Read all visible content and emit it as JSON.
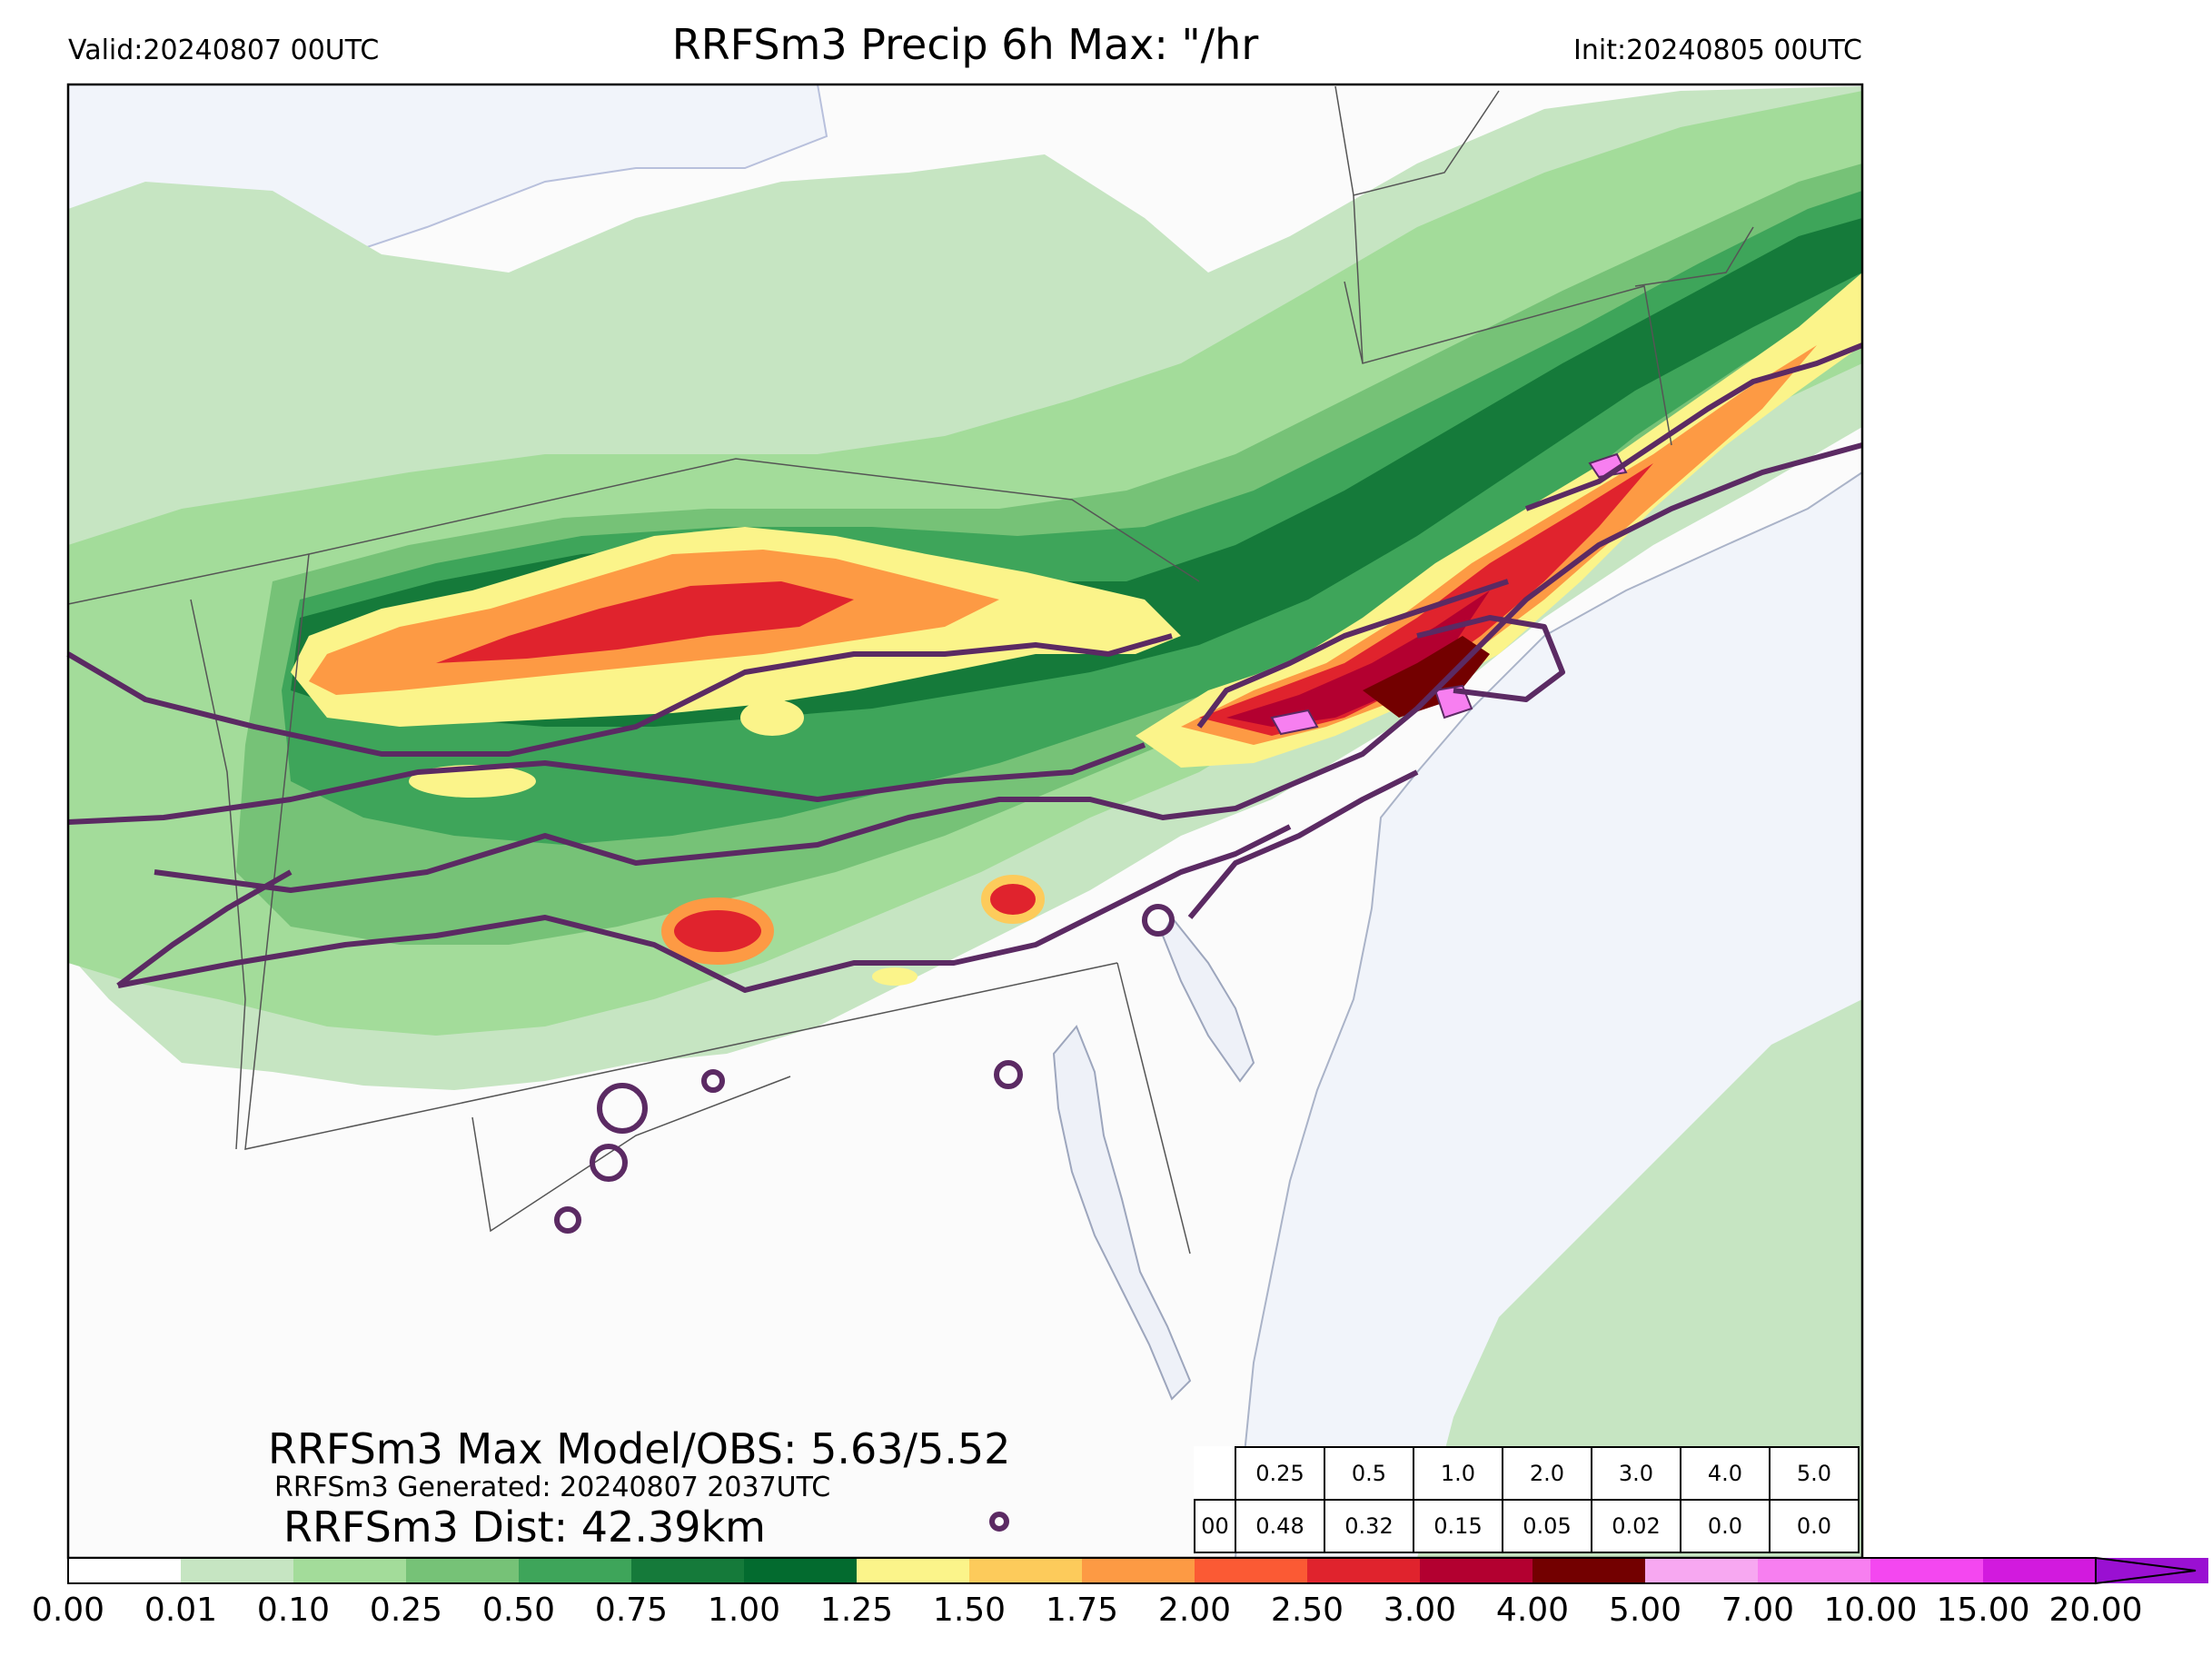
{
  "header": {
    "valid": "Valid:20240807 00UTC",
    "title": "RRFSm3 Precip 6h Max: \"/hr",
    "init": "Init:20240805 00UTC"
  },
  "stats": {
    "max_model_obs": "RRFSm3 Max Model/OBS: 5.63/5.52",
    "generated": "RRFSm3 Generated: 20240807 2037UTC",
    "dist": "RRFSm3 Dist: 42.39km"
  },
  "threshold_table": {
    "thresholds": [
      "0.25",
      "0.5",
      "1.0",
      "2.0",
      "3.0",
      "4.0",
      "5.0"
    ],
    "row_label": "00",
    "values": [
      "0.48",
      "0.32",
      "0.15",
      "0.05",
      "0.02",
      "0.0",
      "0.0"
    ]
  },
  "colorbar": {
    "ticks": [
      "0.00",
      "0.01",
      "0.10",
      "0.25",
      "0.50",
      "0.75",
      "1.00",
      "1.25",
      "1.50",
      "1.75",
      "2.00",
      "2.50",
      "3.00",
      "4.00",
      "5.00",
      "7.00",
      "10.00",
      "15.00",
      "20.00"
    ],
    "colors": [
      "#ffffff",
      "#c6e5c2",
      "#a3dc9a",
      "#76c277",
      "#3ea55a",
      "#157a3a",
      "#036b2f",
      "#fbf48a",
      "#fdcb5b",
      "#fd9a44",
      "#fb5a34",
      "#e0232d",
      "#b30030",
      "#730000",
      "#f7a8f1",
      "#f77ff0",
      "#f447f0",
      "#d21ade",
      "#9a10d2"
    ]
  },
  "map": {
    "colors": {
      "land": "#fbfbfb",
      "water": "#f1f4fa",
      "light_green": "#c6e5c2",
      "green": "#a3dc9a",
      "mid_green": "#76c277",
      "dark_green": "#3ea55a",
      "deep_green": "#157a3a",
      "yellow": "#fbf48a",
      "orange": "#fdcb5b",
      "red": "#e0232d",
      "dark_red": "#b30030",
      "pink": "#f77ff0",
      "obs_contour": "#5b2a63"
    }
  }
}
